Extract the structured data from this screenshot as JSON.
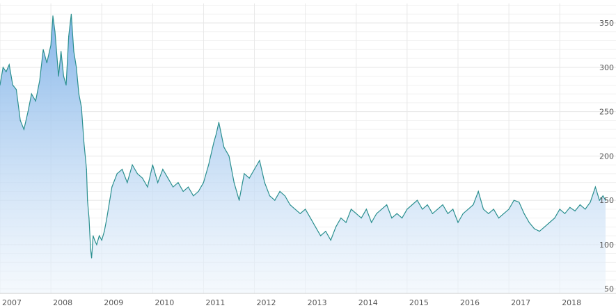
{
  "chart_data": {
    "type": "area",
    "title": "",
    "xlabel": "",
    "ylabel": "",
    "xlim": [
      2007.0,
      2018.9
    ],
    "ylim": [
      45,
      372
    ],
    "grid": true,
    "x_ticks": [
      {
        "value": 2007,
        "label": "2007"
      },
      {
        "value": 2008,
        "label": "2008"
      },
      {
        "value": 2009,
        "label": "2009"
      },
      {
        "value": 2010,
        "label": "2010"
      },
      {
        "value": 2011,
        "label": "2011"
      },
      {
        "value": 2012,
        "label": "2012"
      },
      {
        "value": 2013,
        "label": "2013"
      },
      {
        "value": 2014,
        "label": "2014"
      },
      {
        "value": 2015,
        "label": "2015"
      },
      {
        "value": 2016,
        "label": "2016"
      },
      {
        "value": 2017,
        "label": "2017"
      },
      {
        "value": 2018,
        "label": "2018"
      }
    ],
    "y_ticks": [
      {
        "value": 50,
        "label": "50"
      },
      {
        "value": 100,
        "label": "100"
      },
      {
        "value": 150,
        "label": "150"
      },
      {
        "value": 200,
        "label": "200"
      },
      {
        "value": 250,
        "label": "250"
      },
      {
        "value": 300,
        "label": "300"
      },
      {
        "value": 350,
        "label": "350"
      }
    ],
    "series": [
      {
        "x": [
          2007.0,
          2007.06,
          2007.12,
          2007.18,
          2007.25,
          2007.32,
          2007.4,
          2007.47,
          2007.55,
          2007.62,
          2007.7,
          2007.78,
          2007.85,
          2007.92,
          2008.0,
          2008.04,
          2008.08,
          2008.15,
          2008.2,
          2008.25,
          2008.3,
          2008.35,
          2008.4,
          2008.45,
          2008.5,
          2008.55,
          2008.6,
          2008.65,
          2008.7,
          2008.72,
          2008.75,
          2008.78,
          2008.8,
          2008.83,
          2008.86,
          2008.9,
          2008.95,
          2009.0,
          2009.05,
          2009.1,
          2009.2,
          2009.3,
          2009.4,
          2009.5,
          2009.6,
          2009.7,
          2009.8,
          2009.9,
          2010.0,
          2010.1,
          2010.2,
          2010.3,
          2010.4,
          2010.5,
          2010.6,
          2010.7,
          2010.8,
          2010.9,
          2011.0,
          2011.1,
          2011.2,
          2011.25,
          2011.3,
          2011.4,
          2011.5,
          2011.6,
          2011.7,
          2011.8,
          2011.9,
          2012.0,
          2012.1,
          2012.2,
          2012.3,
          2012.4,
          2012.5,
          2012.6,
          2012.7,
          2012.8,
          2012.9,
          2013.0,
          2013.1,
          2013.2,
          2013.3,
          2013.4,
          2013.5,
          2013.6,
          2013.7,
          2013.8,
          2013.9,
          2014.0,
          2014.1,
          2014.2,
          2014.3,
          2014.4,
          2014.5,
          2014.6,
          2014.7,
          2014.8,
          2014.9,
          2015.0,
          2015.1,
          2015.2,
          2015.3,
          2015.4,
          2015.5,
          2015.6,
          2015.7,
          2015.8,
          2015.9,
          2016.0,
          2016.1,
          2016.2,
          2016.3,
          2016.4,
          2016.5,
          2016.6,
          2016.7,
          2016.8,
          2016.9,
          2017.0,
          2017.1,
          2017.2,
          2017.3,
          2017.4,
          2017.5,
          2017.6,
          2017.7,
          2017.8,
          2017.9,
          2018.0,
          2018.1,
          2018.2,
          2018.3,
          2018.4,
          2018.5,
          2018.6,
          2018.7,
          2018.78,
          2018.85,
          2018.9
        ],
        "values": [
          280,
          300,
          295,
          303,
          280,
          275,
          240,
          230,
          250,
          270,
          262,
          285,
          320,
          305,
          325,
          358,
          340,
          290,
          318,
          290,
          280,
          335,
          360,
          318,
          300,
          270,
          255,
          215,
          185,
          150,
          130,
          95,
          85,
          110,
          105,
          100,
          110,
          105,
          115,
          130,
          165,
          180,
          185,
          170,
          190,
          180,
          175,
          165,
          190,
          170,
          185,
          175,
          165,
          170,
          160,
          165,
          155,
          160,
          170,
          190,
          215,
          225,
          238,
          210,
          200,
          170,
          150,
          180,
          175,
          185,
          195,
          170,
          155,
          150,
          160,
          155,
          145,
          140,
          135,
          140,
          130,
          120,
          110,
          115,
          105,
          120,
          130,
          125,
          140,
          135,
          130,
          140,
          125,
          135,
          140,
          145,
          130,
          135,
          130,
          140,
          145,
          150,
          140,
          145,
          135,
          140,
          145,
          135,
          140,
          125,
          135,
          140,
          145,
          160,
          140,
          135,
          140,
          130,
          135,
          140,
          150,
          148,
          135,
          125,
          118,
          115,
          120,
          125,
          130,
          140,
          135,
          142,
          138,
          145,
          140,
          148,
          165,
          150,
          155,
          150
        ]
      }
    ]
  }
}
